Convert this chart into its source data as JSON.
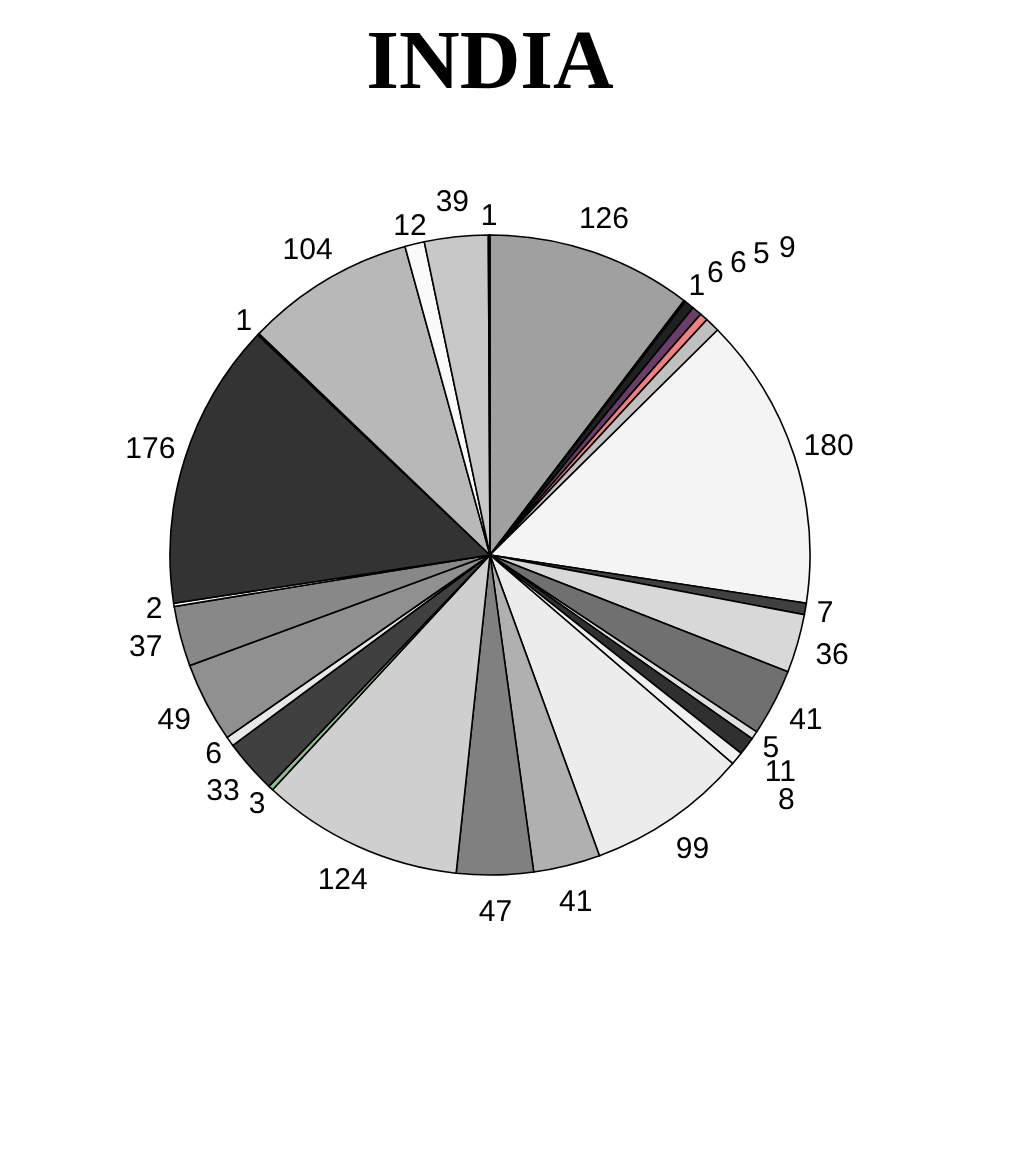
{
  "chart_data": {
    "type": "pie",
    "title": "INDIA",
    "categories": [
      null,
      null,
      null,
      null,
      null,
      null,
      null,
      null,
      null,
      null,
      null,
      null,
      null,
      null,
      null,
      null,
      null,
      null,
      null,
      null,
      null,
      null,
      null,
      null,
      null,
      null,
      null,
      null,
      null
    ],
    "values": [
      126,
      1,
      6,
      6,
      5,
      9,
      180,
      7,
      36,
      41,
      5,
      11,
      8,
      99,
      41,
      47,
      124,
      3,
      33,
      6,
      49,
      37,
      2,
      176,
      1,
      104,
      12,
      39,
      1
    ],
    "colors": [
      "#a0a0a0",
      "#ffffff",
      "#202020",
      "#6a3d6a",
      "#f08080",
      "#c0c0c0",
      "#f4f4f4",
      "#404040",
      "#d8d8d8",
      "#707070",
      "#e0e0e0",
      "#303030",
      "#f0f0f0",
      "#ececec",
      "#b0b0b0",
      "#808080",
      "#cfcfcf",
      "#8fbc8f",
      "#404040",
      "#e8e8e8",
      "#909090",
      "#888888",
      "#f8f8f8",
      "#333333",
      "#ffffff",
      "#b8b8b8",
      "#fafafa",
      "#c8c8c8",
      "#e4e4e4"
    ],
    "data_labels": true
  }
}
